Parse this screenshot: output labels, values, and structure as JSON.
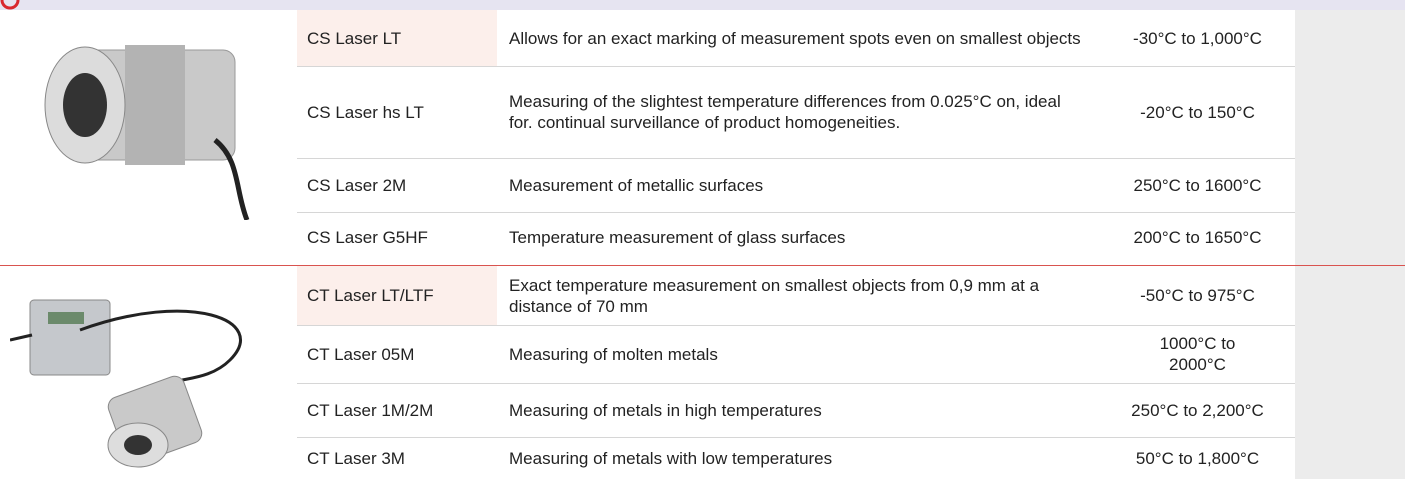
{
  "groups": [
    {
      "rows": [
        {
          "model": "CS Laser LT",
          "description": "Allows for an exact marking of measurement spots even on smallest objects",
          "range": "-30°C to 1,000°C"
        },
        {
          "model": "CS Laser hs LT",
          "description": "Measuring of the slightest temperature differences from 0.025°C on, ideal for. continual surveillance of product homogeneities.",
          "range": "-20°C to 150°C"
        },
        {
          "model": "CS Laser 2M",
          "description": "Measurement of metallic surfaces",
          "range": "250°C to 1600°C"
        },
        {
          "model": "CS Laser G5HF",
          "description": "Temperature measurement of glass surfaces",
          "range": "200°C to 1650°C"
        }
      ]
    },
    {
      "rows": [
        {
          "model": "CT Laser LT/LTF",
          "description": "Exact temperature measurement on smallest objects from 0,9 mm at a distance of 70 mm",
          "range": "-50°C to 975°C"
        },
        {
          "model": "CT Laser 05M",
          "description": "Measuring of molten metals",
          "range": "1000°C to 2000°C"
        },
        {
          "model": "CT Laser 1M/2M",
          "description": "Measuring of metals in high temperatures",
          "range": "250°C to 2,200°C"
        },
        {
          "model": "CT Laser 3M",
          "description": "Measuring of metals with low temperatures",
          "range": "50°C to 1,800°C"
        }
      ]
    }
  ]
}
